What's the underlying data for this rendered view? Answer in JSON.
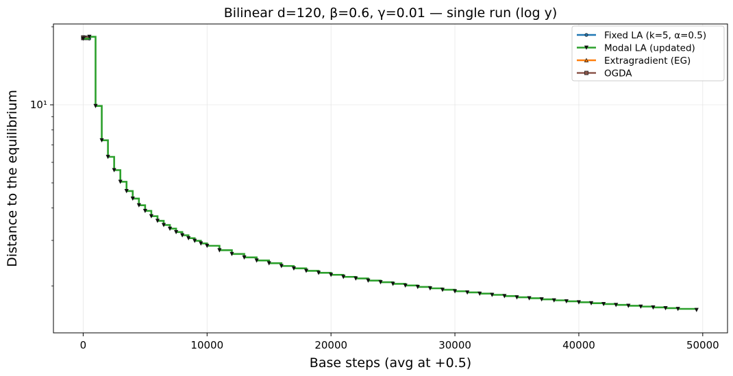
{
  "chart_data": {
    "type": "line",
    "title": "Bilinear d=120, β=0.6, γ=0.01 — single run (log y)",
    "xlabel": "Base steps (avg at +0.5)",
    "ylabel": "Distance to the equilibrium",
    "xlim": [
      -2400,
      52000
    ],
    "ylim": [
      1.32,
      20.5
    ],
    "yscale": "log",
    "xticks": [
      0,
      10000,
      20000,
      30000,
      40000,
      50000
    ],
    "xtick_labels": [
      "0",
      "10000",
      "20000",
      "30000",
      "40000",
      "50000"
    ],
    "yticks": [
      10
    ],
    "ytick_labels": [
      "10¹"
    ],
    "grid": true,
    "legend_position": "top-right",
    "series": [
      {
        "name": "Fixed LA (k=5, α=0.5)",
        "color": "#1f77b4",
        "marker": "circle",
        "x": [
          0,
          250,
          500
        ],
        "y": [
          18.1,
          18.1,
          18.0
        ]
      },
      {
        "name": "Modal LA (updated)",
        "color": "#2ca02c",
        "marker": "triangle-down",
        "x": [
          0,
          500,
          1000,
          1500,
          2000,
          2500,
          3000,
          3500,
          4000,
          4500,
          5000,
          5500,
          6000,
          6500,
          7000,
          7500,
          8000,
          8500,
          9000,
          9500,
          10000,
          11000,
          12000,
          13000,
          14000,
          15000,
          16000,
          17000,
          18000,
          19000,
          20000,
          21000,
          22000,
          23000,
          24000,
          25000,
          26000,
          27000,
          28000,
          29000,
          30000,
          31000,
          32000,
          33000,
          34000,
          35000,
          36000,
          37000,
          38000,
          39000,
          40000,
          41000,
          42000,
          43000,
          44000,
          45000,
          46000,
          47000,
          48000,
          49500
        ],
        "y": [
          18.0,
          18.3,
          9.9,
          7.3,
          6.3,
          5.6,
          5.05,
          4.65,
          4.35,
          4.1,
          3.9,
          3.72,
          3.57,
          3.44,
          3.33,
          3.23,
          3.14,
          3.06,
          2.99,
          2.92,
          2.86,
          2.75,
          2.66,
          2.58,
          2.51,
          2.45,
          2.39,
          2.34,
          2.29,
          2.25,
          2.21,
          2.17,
          2.14,
          2.1,
          2.07,
          2.04,
          2.01,
          1.985,
          1.96,
          1.935,
          1.91,
          1.89,
          1.87,
          1.85,
          1.83,
          1.81,
          1.795,
          1.778,
          1.762,
          1.747,
          1.732,
          1.718,
          1.705,
          1.692,
          1.679,
          1.667,
          1.655,
          1.644,
          1.633,
          1.618
        ]
      },
      {
        "name": "Extragradient (EG)",
        "color": "#ff7f0e",
        "marker": "triangle-up",
        "x": [
          0,
          150,
          300
        ],
        "y": [
          18.1,
          18.1,
          18.1
        ]
      },
      {
        "name": "OGDA",
        "color": "#8c564b",
        "marker": "square",
        "x": [
          0,
          150,
          300
        ],
        "y": [
          18.2,
          18.15,
          18.1
        ]
      }
    ]
  }
}
